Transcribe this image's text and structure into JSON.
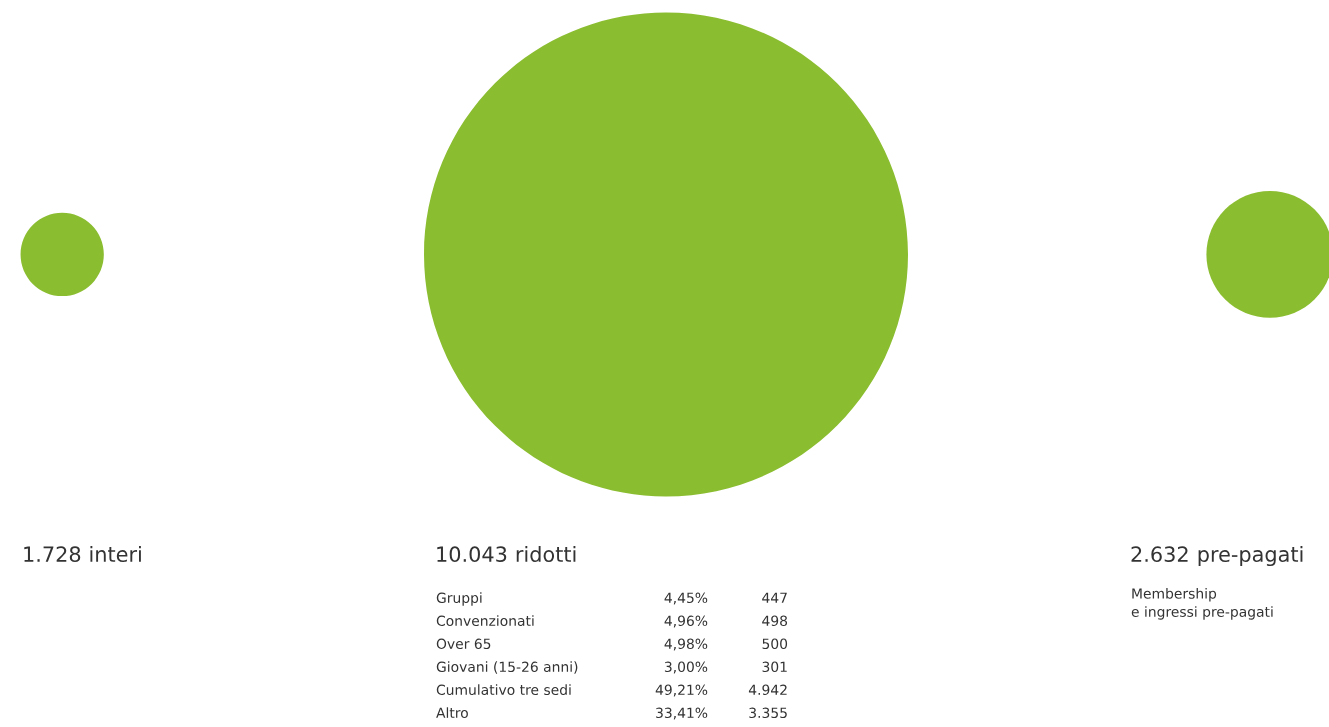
{
  "chart_data": {
    "type": "other",
    "categories": [
      "interi",
      "ridotti",
      "pre-pagati"
    ],
    "values": [
      1728,
      10043,
      2632
    ],
    "value_labels": [
      "1.728",
      "10.043",
      "2.632"
    ],
    "color": "#8bbd30",
    "annotations": [
      "Gruppi",
      "4,45%",
      "447",
      "Convenzionati",
      "4,96%",
      "498",
      "Over 65",
      "4,98%",
      "500",
      "Giovani (15-26 anni)",
      "3,00%",
      "301",
      "Cumulativo tre sedi",
      "49,21%",
      "4.942",
      "Altro",
      "33,41%",
      "3.355",
      "Membership\ne ingressi pre-pagati"
    ]
  }
}
